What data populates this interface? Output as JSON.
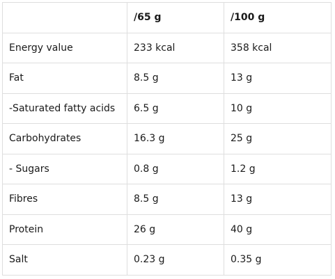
{
  "table": {
    "headers": [
      "",
      "/65 g",
      "/100 g"
    ],
    "rows": [
      {
        "name": "Energy value",
        "per65": "233 kcal",
        "per100": "358 kcal"
      },
      {
        "name": "Fat",
        "per65": "8.5 g",
        "per100": "13 g"
      },
      {
        "name": "-Saturated fatty acids",
        "per65": "6.5 g",
        "per100": "10 g"
      },
      {
        "name": "Carbohydrates",
        "per65": "16.3 g",
        "per100": "25 g"
      },
      {
        "name": "- Sugars",
        "per65": "0.8 g",
        "per100": "1.2 g"
      },
      {
        "name": "Fibres",
        "per65": "8.5 g",
        "per100": "13 g"
      },
      {
        "name": "Protein",
        "per65": "26 g",
        "per100": "40 g"
      },
      {
        "name": "Salt",
        "per65": "0.23 g",
        "per100": "0.35 g"
      }
    ]
  }
}
